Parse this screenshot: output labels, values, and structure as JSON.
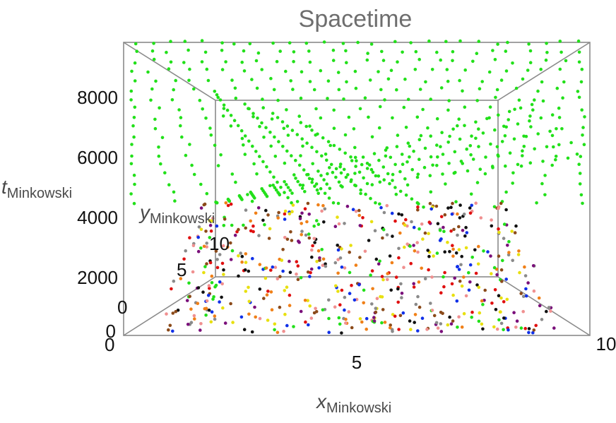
{
  "chart_data": {
    "type": "scatter",
    "title": "Spacetime",
    "axes": {
      "x": {
        "label_main": "x",
        "label_sub": "Minkowski",
        "range": [
          0,
          10
        ],
        "ticks": [
          "5",
          "10"
        ]
      },
      "t": {
        "label_main": "t",
        "label_sub": "Minkowski",
        "range": [
          0,
          9500
        ],
        "ticks": [
          "8000",
          "6000",
          "4000",
          "2000",
          "0"
        ]
      },
      "y": {
        "label_main": "y",
        "label_sub": "Minkowski",
        "ticks": [
          "10",
          "5",
          "0"
        ]
      },
      "origin_tick": "0"
    },
    "grid": false,
    "legend": "none",
    "series_colors": {
      "upper_lattice": "#22e01a",
      "lower_points": [
        "#e01010",
        "#7a0f7a",
        "#f08018",
        "#1030e8",
        "#111111",
        "#8a8a8a",
        "#f09090",
        "#8b4a1a",
        "#22e01a",
        "#e8e010"
      ]
    },
    "regions": [
      {
        "name": "upper lattice",
        "t_range": [
          4300,
          9500
        ],
        "x_range": [
          0,
          10
        ]
      },
      {
        "name": "lower scatter",
        "t_range": [
          0,
          4300
        ],
        "x_range": [
          0,
          10
        ]
      }
    ]
  }
}
